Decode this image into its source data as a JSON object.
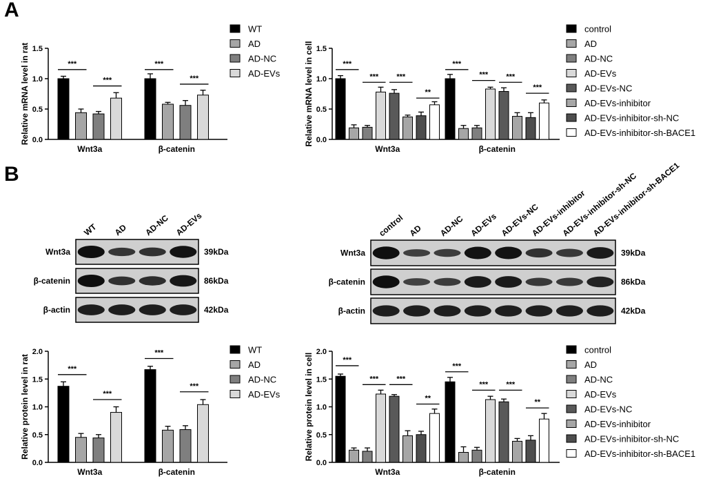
{
  "panels": {
    "a": "A",
    "b": "B"
  },
  "colors": {
    "WT": "#000000",
    "AD": "#a6a6a6",
    "AD-NC": "#7f7f7f",
    "AD-EVs": "#d9d9d9",
    "control": "#000000",
    "AD-EVs-NC": "#595959",
    "AD-EVs-inhibitor": "#a6a6a6",
    "AD-EVs-inhibitor-sh-NC": "#4d4d4d",
    "AD-EVs-inhibitor-sh-BACE1": "#ffffff"
  },
  "blots": {
    "rat": {
      "lanes": [
        "WT",
        "AD",
        "AD-NC",
        "AD-EVs"
      ],
      "rows": [
        {
          "protein": "Wnt3a",
          "size": "39kDa",
          "intensity": [
            1.0,
            0.5,
            0.55,
            0.95
          ]
        },
        {
          "protein": "β-catenin",
          "size": "86kDa",
          "intensity": [
            1.0,
            0.55,
            0.6,
            0.9
          ]
        },
        {
          "protein": "β-actin",
          "size": "42kDa",
          "intensity": [
            0.8,
            0.8,
            0.8,
            0.8
          ]
        }
      ]
    },
    "cell": {
      "lanes": [
        "control",
        "AD",
        "AD-NC",
        "AD-EVs",
        "AD-EVs-NC",
        "AD-EVs-inhibitor",
        "AD-EVs-inhibitor-sh-NC",
        "AD-EVs-inhibitor-sh-BACE1"
      ],
      "rows": [
        {
          "protein": "Wnt3a",
          "size": "39kDa",
          "intensity": [
            1.0,
            0.35,
            0.4,
            0.95,
            0.95,
            0.55,
            0.45,
            0.85
          ]
        },
        {
          "protein": "β-catenin",
          "size": "86kDa",
          "intensity": [
            1.0,
            0.35,
            0.4,
            0.85,
            0.85,
            0.45,
            0.45,
            0.75
          ]
        },
        {
          "protein": "β-actin",
          "size": "42kDa",
          "intensity": [
            0.8,
            0.8,
            0.8,
            0.8,
            0.8,
            0.8,
            0.8,
            0.8
          ]
        }
      ]
    }
  },
  "chart_data": [
    {
      "type": "bar",
      "ylabel": "Relative mRNA level in rat",
      "categories": [
        "Wnt3a",
        "β-catenin"
      ],
      "ylim": [
        0,
        1.5
      ],
      "yticks": [
        "0.0",
        "0.5",
        "1.0",
        "1.5"
      ],
      "series": [
        {
          "name": "WT",
          "values": [
            1.0,
            1.0
          ],
          "errors": [
            0.04,
            0.08
          ]
        },
        {
          "name": "AD",
          "values": [
            0.44,
            0.58
          ],
          "errors": [
            0.06,
            0.03
          ]
        },
        {
          "name": "AD-NC",
          "values": [
            0.42,
            0.56
          ],
          "errors": [
            0.04,
            0.08
          ]
        },
        {
          "name": "AD-EVs",
          "values": [
            0.68,
            0.73
          ],
          "errors": [
            0.09,
            0.08
          ]
        }
      ],
      "significance": [
        {
          "group": 0,
          "from": 0,
          "to": 1,
          "y": 1.15,
          "label": "***"
        },
        {
          "group": 0,
          "from": 2,
          "to": 3,
          "y": 0.88,
          "label": "***"
        },
        {
          "group": 1,
          "from": 0,
          "to": 1,
          "y": 1.15,
          "label": "***"
        },
        {
          "group": 1,
          "from": 2,
          "to": 3,
          "y": 0.91,
          "label": "***"
        }
      ],
      "legend_placement": "right"
    },
    {
      "type": "bar",
      "ylabel": "Relative mRNA level in cell",
      "categories": [
        "Wnt3a",
        "β-catenin"
      ],
      "ylim": [
        0,
        1.5
      ],
      "yticks": [
        "0.0",
        "0.5",
        "1.0",
        "1.5"
      ],
      "series": [
        {
          "name": "control",
          "values": [
            1.0,
            1.0
          ],
          "errors": [
            0.05,
            0.07
          ]
        },
        {
          "name": "AD",
          "values": [
            0.19,
            0.18
          ],
          "errors": [
            0.05,
            0.05
          ]
        },
        {
          "name": "AD-NC",
          "values": [
            0.2,
            0.19
          ],
          "errors": [
            0.03,
            0.04
          ]
        },
        {
          "name": "AD-EVs",
          "values": [
            0.78,
            0.83
          ],
          "errors": [
            0.08,
            0.03
          ]
        },
        {
          "name": "AD-EVs-NC",
          "values": [
            0.76,
            0.79
          ],
          "errors": [
            0.06,
            0.06
          ]
        },
        {
          "name": "AD-EVs-inhibitor",
          "values": [
            0.37,
            0.38
          ],
          "errors": [
            0.03,
            0.06
          ]
        },
        {
          "name": "AD-EVs-inhibitor-sh-NC",
          "values": [
            0.39,
            0.36
          ],
          "errors": [
            0.06,
            0.08
          ]
        },
        {
          "name": "AD-EVs-inhibitor-sh-BACE1",
          "values": [
            0.57,
            0.6
          ],
          "errors": [
            0.05,
            0.05
          ]
        }
      ],
      "significance": [
        {
          "group": 0,
          "from": 0,
          "to": 1,
          "y": 1.15,
          "label": "***"
        },
        {
          "group": 0,
          "from": 2,
          "to": 3,
          "y": 0.94,
          "label": "***"
        },
        {
          "group": 0,
          "from": 4,
          "to": 5,
          "y": 0.94,
          "label": "***"
        },
        {
          "group": 0,
          "from": 6,
          "to": 7,
          "y": 0.68,
          "label": "**"
        },
        {
          "group": 1,
          "from": 0,
          "to": 1,
          "y": 1.15,
          "label": "***"
        },
        {
          "group": 1,
          "from": 2,
          "to": 3,
          "y": 0.97,
          "label": "***"
        },
        {
          "group": 1,
          "from": 4,
          "to": 5,
          "y": 0.94,
          "label": "***"
        },
        {
          "group": 1,
          "from": 6,
          "to": 7,
          "y": 0.76,
          "label": "***"
        }
      ],
      "legend_placement": "right"
    },
    {
      "type": "bar",
      "ylabel": "Relative protein level in rat",
      "categories": [
        "Wnt3a",
        "β-catenin"
      ],
      "ylim": [
        0,
        2.0
      ],
      "yticks": [
        "0.0",
        "0.5",
        "1.0",
        "1.5",
        "2.0"
      ],
      "series": [
        {
          "name": "WT",
          "values": [
            1.37,
            1.67
          ],
          "errors": [
            0.08,
            0.06
          ]
        },
        {
          "name": "AD",
          "values": [
            0.45,
            0.58
          ],
          "errors": [
            0.07,
            0.07
          ]
        },
        {
          "name": "AD-NC",
          "values": [
            0.44,
            0.59
          ],
          "errors": [
            0.06,
            0.07
          ]
        },
        {
          "name": "AD-EVs",
          "values": [
            0.9,
            1.04
          ],
          "errors": [
            0.1,
            0.09
          ]
        }
      ],
      "significance": [
        {
          "group": 0,
          "from": 0,
          "to": 1,
          "y": 1.58,
          "label": "***"
        },
        {
          "group": 0,
          "from": 2,
          "to": 3,
          "y": 1.13,
          "label": "***"
        },
        {
          "group": 1,
          "from": 0,
          "to": 1,
          "y": 1.87,
          "label": "***"
        },
        {
          "group": 1,
          "from": 2,
          "to": 3,
          "y": 1.27,
          "label": "***"
        }
      ],
      "legend_placement": "right"
    },
    {
      "type": "bar",
      "ylabel": "Relative protein level in cell",
      "categories": [
        "Wnt3a",
        "β-catenin"
      ],
      "ylim": [
        0,
        2.0
      ],
      "yticks": [
        "0.0",
        "0.5",
        "1.0",
        "1.5",
        "2.0"
      ],
      "series": [
        {
          "name": "control",
          "values": [
            1.55,
            1.45
          ],
          "errors": [
            0.04,
            0.08
          ]
        },
        {
          "name": "AD",
          "values": [
            0.22,
            0.18
          ],
          "errors": [
            0.04,
            0.1
          ]
        },
        {
          "name": "AD-NC",
          "values": [
            0.2,
            0.22
          ],
          "errors": [
            0.06,
            0.05
          ]
        },
        {
          "name": "AD-EVs",
          "values": [
            1.23,
            1.13
          ],
          "errors": [
            0.07,
            0.06
          ]
        },
        {
          "name": "AD-EVs-NC",
          "values": [
            1.19,
            1.09
          ],
          "errors": [
            0.03,
            0.05
          ]
        },
        {
          "name": "AD-EVs-inhibitor",
          "values": [
            0.48,
            0.38
          ],
          "errors": [
            0.09,
            0.05
          ]
        },
        {
          "name": "AD-EVs-inhibitor-sh-NC",
          "values": [
            0.5,
            0.4
          ],
          "errors": [
            0.06,
            0.08
          ]
        },
        {
          "name": "AD-EVs-inhibitor-sh-BACE1",
          "values": [
            0.88,
            0.78
          ],
          "errors": [
            0.08,
            0.1
          ]
        }
      ],
      "significance": [
        {
          "group": 0,
          "from": 0,
          "to": 1,
          "y": 1.74,
          "label": "***"
        },
        {
          "group": 0,
          "from": 2,
          "to": 3,
          "y": 1.4,
          "label": "***"
        },
        {
          "group": 0,
          "from": 4,
          "to": 5,
          "y": 1.4,
          "label": "***"
        },
        {
          "group": 0,
          "from": 6,
          "to": 7,
          "y": 1.05,
          "label": "**"
        },
        {
          "group": 1,
          "from": 0,
          "to": 1,
          "y": 1.63,
          "label": "***"
        },
        {
          "group": 1,
          "from": 2,
          "to": 3,
          "y": 1.3,
          "label": "***"
        },
        {
          "group": 1,
          "from": 4,
          "to": 5,
          "y": 1.3,
          "label": "***"
        },
        {
          "group": 1,
          "from": 6,
          "to": 7,
          "y": 0.98,
          "label": "**"
        }
      ],
      "legend_placement": "right"
    }
  ]
}
